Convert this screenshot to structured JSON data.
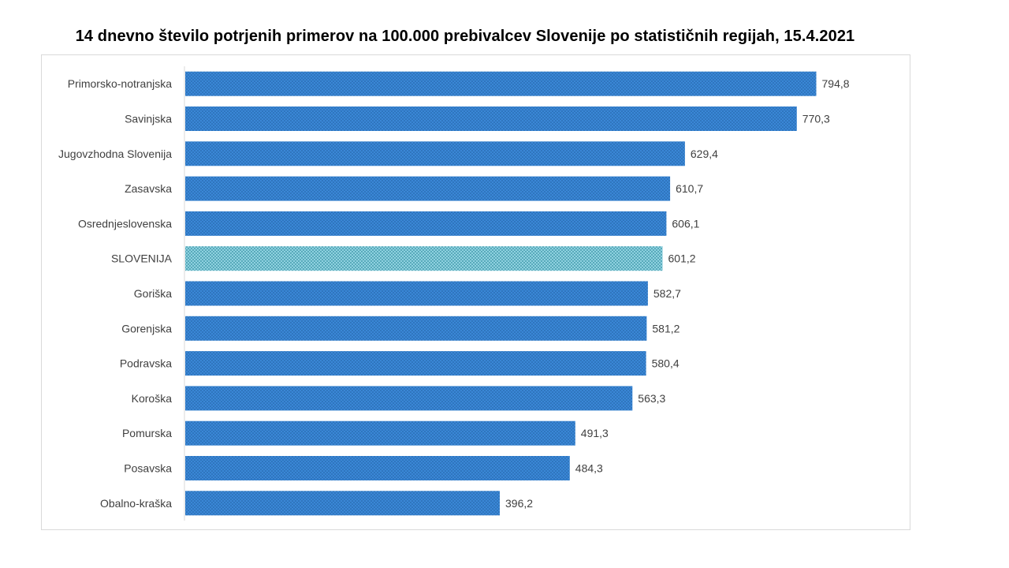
{
  "chart_data": {
    "type": "bar",
    "orientation": "horizontal",
    "title": "14 dnevno število potrjenih primerov na 100.000 prebivalcev Slovenije po statističnih regijah, 15.4.2021",
    "categories": [
      "Primorsko-notranjska",
      "Savinjska",
      "Jugovzhodna Slovenija",
      "Zasavska",
      "Osrednjeslovenska",
      "SLOVENIJA",
      "Goriška",
      "Gorenjska",
      "Podravska",
      "Koroška",
      "Pomurska",
      "Posavska",
      "Obalno-kraška"
    ],
    "values": [
      794.8,
      770.3,
      629.4,
      610.7,
      606.1,
      601.2,
      582.7,
      581.2,
      580.4,
      563.3,
      491.3,
      484.3,
      396.2
    ],
    "value_labels": [
      "794,8",
      "770,3",
      "629,4",
      "610,7",
      "606,1",
      "601,2",
      "582,7",
      "581,2",
      "580,4",
      "563,3",
      "491,3",
      "484,3",
      "396,2"
    ],
    "highlight_category": "SLOVENIJA",
    "xlabel": "",
    "ylabel": "",
    "xlim": [
      0,
      900
    ],
    "grid": false,
    "legend": "none",
    "colors": {
      "bar": "#3a87d6",
      "bar_pattern": "#1f5e9e",
      "highlight_bar": "#8fd1e0",
      "highlight_pattern": "#2a8a9c",
      "axis": "#d9d9d9",
      "label_text": "#404040"
    }
  }
}
